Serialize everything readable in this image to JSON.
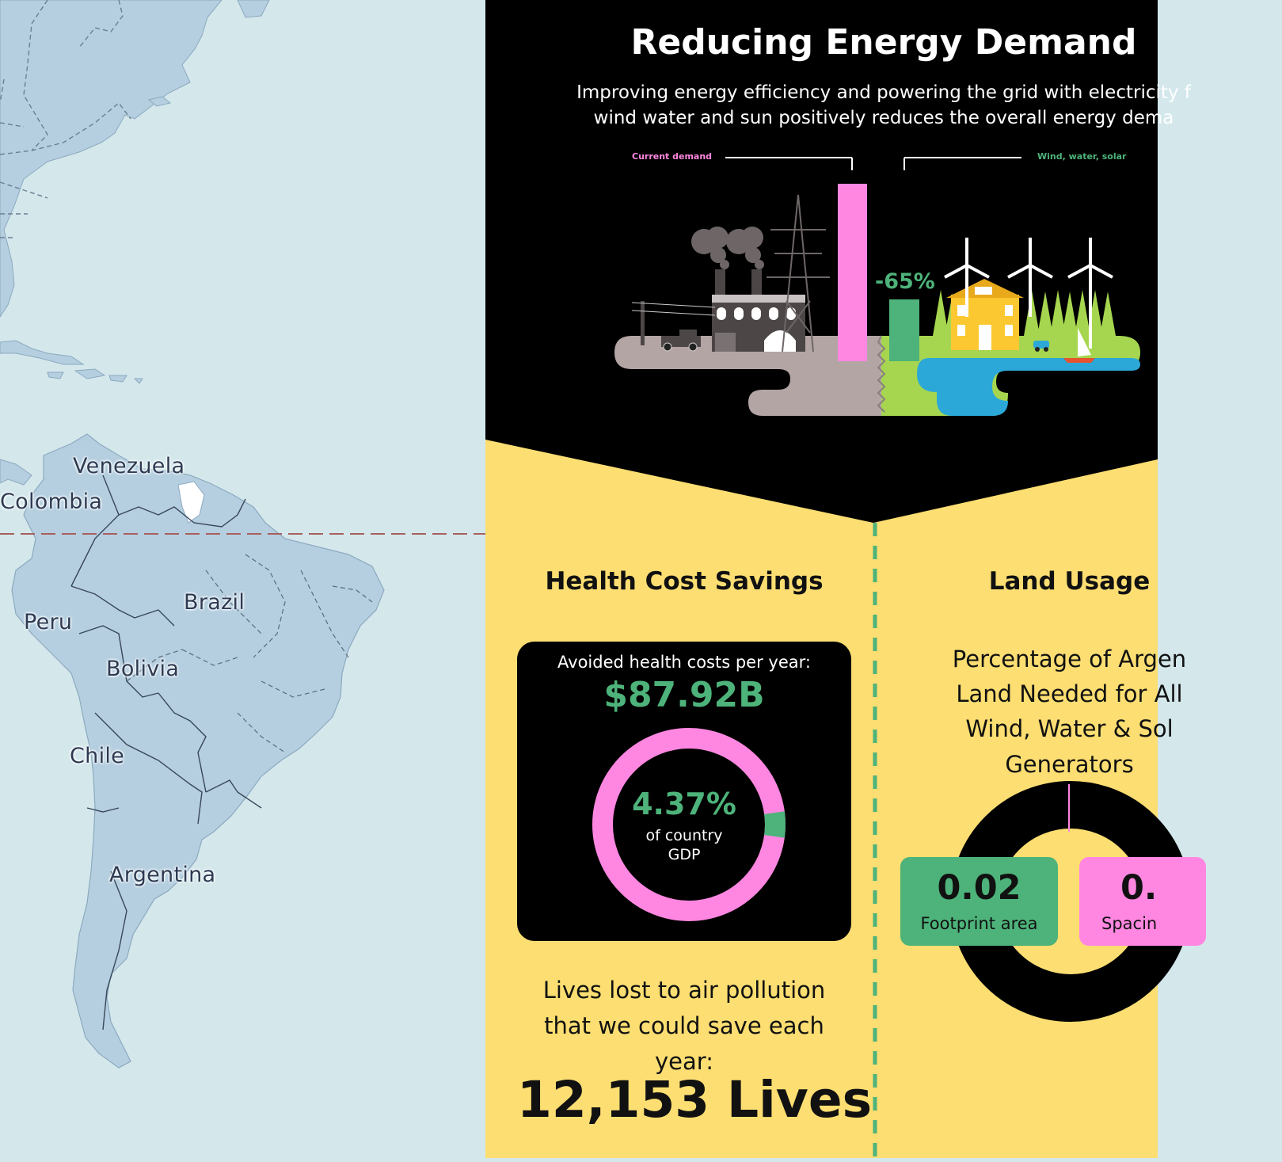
{
  "map": {
    "labels": {
      "venezuela": "Venezuela",
      "colombia": "Colombia",
      "peru": "Peru",
      "brazil": "Brazil",
      "bolivia": "Bolivia",
      "chile": "Chile",
      "argentina": "Argentina"
    }
  },
  "infographic": {
    "title": "Reducing Energy Demand",
    "subtitle_line1": "Improving energy efficiency and powering the grid with electricity f",
    "subtitle_line2": "wind water and sun positively reduces the overall energy dema",
    "legend_current": "Current demand",
    "legend_wws": "Wind, water, solar",
    "reduction_label": "-65%",
    "health": {
      "heading": "Health Cost Savings",
      "card_label": "Avoided health costs per year:",
      "card_value": "$87.92B",
      "gdp_pct": "4.37%",
      "gdp_fraction": 0.0437,
      "gdp_label_line1": "of country",
      "gdp_label_line2": "GDP",
      "lives_line1": "Lives lost to air pollution",
      "lives_line2": "that we could save each",
      "lives_line3": "year:",
      "lives_value": "12,153 Lives"
    },
    "land": {
      "heading": "Land Usage",
      "desc_line1": "Percentage of Argen",
      "desc_line2": "Land Needed for All",
      "desc_line3": "Wind, Water & Sol",
      "desc_line4": "Generators",
      "footprint_value": "0.02",
      "footprint_label": "Footprint area",
      "spacing_value": "0.",
      "spacing_label": "Spacin"
    },
    "colors": {
      "pink": "#ff87e1",
      "green": "#4db37a",
      "yellow": "#fcde72",
      "black": "#000000"
    }
  }
}
